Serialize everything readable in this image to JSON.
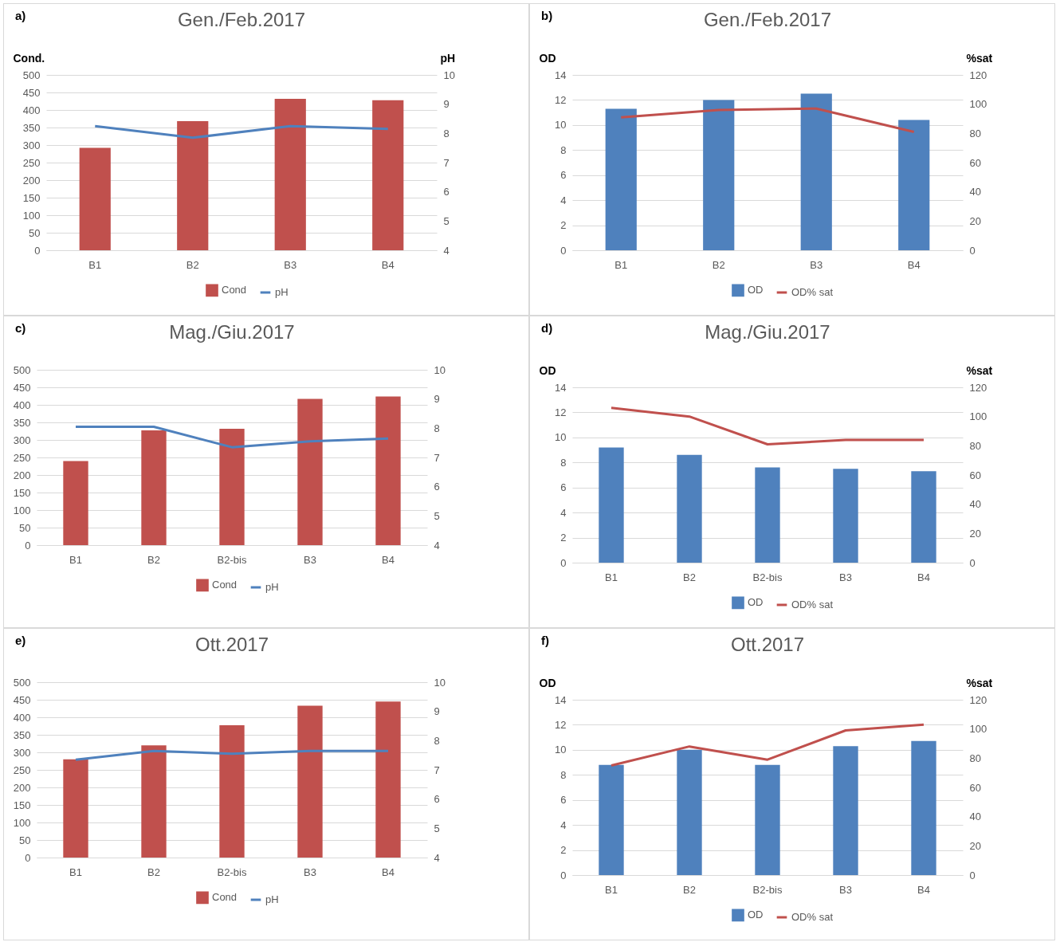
{
  "chart_data": [
    {
      "type": "bar",
      "title": "Gen./Feb.2017",
      "annotations": [
        "a)"
      ],
      "ylabel": "Cond.",
      "y2label": "pH",
      "categories": [
        "B1",
        "B2",
        "B3",
        "B4"
      ],
      "series": [
        {
          "name": "Cond",
          "color": "#c0504d",
          "values": [
            292,
            368,
            432,
            428
          ]
        },
        {
          "name": "pH",
          "type": "line",
          "axis": "y2",
          "color": "#4f81bd",
          "values": [
            8.25,
            7.85,
            8.25,
            8.15
          ]
        }
      ],
      "ylim": [
        0,
        500
      ],
      "yticks": [
        0,
        50,
        100,
        150,
        200,
        250,
        300,
        350,
        400,
        450,
        500
      ],
      "y2lim": [
        4,
        10
      ],
      "y2ticks": [
        4,
        5,
        6,
        7,
        8,
        9,
        10
      ],
      "grid": "y",
      "legend": "bottom"
    },
    {
      "type": "bar",
      "title": "Gen./Feb.2017",
      "annotations": [
        "b)"
      ],
      "ylabel": "OD",
      "y2label": "%sat",
      "categories": [
        "B1",
        "B2",
        "B3",
        "B4"
      ],
      "series": [
        {
          "name": "OD",
          "color": "#4f81bd",
          "values": [
            11.3,
            12.0,
            12.5,
            10.4
          ]
        },
        {
          "name": "OD% sat",
          "type": "line",
          "axis": "y2",
          "color": "#c0504d",
          "values": [
            91,
            96,
            97,
            81
          ]
        }
      ],
      "ylim": [
        0,
        14
      ],
      "yticks": [
        0,
        2,
        4,
        6,
        8,
        10,
        12,
        14
      ],
      "y2lim": [
        0,
        120
      ],
      "y2ticks": [
        0,
        20,
        40,
        60,
        80,
        100,
        120
      ],
      "grid": "y",
      "legend": "bottom"
    },
    {
      "type": "bar",
      "title": "Mag./Giu.2017",
      "annotations": [
        "c)"
      ],
      "categories": [
        "B1",
        "B2",
        "B2-bis",
        "B3",
        "B4"
      ],
      "series": [
        {
          "name": "Cond",
          "color": "#c0504d",
          "values": [
            240,
            327,
            332,
            417,
            424
          ]
        },
        {
          "name": "pH",
          "type": "line",
          "axis": "y2",
          "color": "#4f81bd",
          "values": [
            8.05,
            8.05,
            7.35,
            7.55,
            7.65
          ]
        }
      ],
      "ylim": [
        0,
        500
      ],
      "yticks": [
        0,
        50,
        100,
        150,
        200,
        250,
        300,
        350,
        400,
        450,
        500
      ],
      "y2lim": [
        4,
        10
      ],
      "y2ticks": [
        4,
        5,
        6,
        7,
        8,
        9,
        10
      ],
      "grid": "y",
      "legend": "bottom"
    },
    {
      "type": "bar",
      "title": "Mag./Giu.2017",
      "annotations": [
        "d)"
      ],
      "ylabel": "OD",
      "y2label": "%sat",
      "categories": [
        "B1",
        "B2",
        "B2-bis",
        "B3",
        "B4"
      ],
      "series": [
        {
          "name": "OD",
          "color": "#4f81bd",
          "values": [
            9.2,
            8.6,
            7.6,
            7.5,
            7.3
          ]
        },
        {
          "name": "OD% sat",
          "type": "line",
          "axis": "y2",
          "color": "#c0504d",
          "values": [
            106,
            100,
            81,
            84,
            84
          ]
        }
      ],
      "ylim": [
        0,
        14
      ],
      "yticks": [
        0,
        2,
        4,
        6,
        8,
        10,
        12,
        14
      ],
      "y2lim": [
        0,
        120
      ],
      "y2ticks": [
        0,
        20,
        40,
        60,
        80,
        100,
        120
      ],
      "grid": "y",
      "legend": "bottom"
    },
    {
      "type": "bar",
      "title": "Ott.2017",
      "annotations": [
        "e)"
      ],
      "categories": [
        "B1",
        "B2",
        "B2-bis",
        "B3",
        "B4"
      ],
      "series": [
        {
          "name": "Cond",
          "color": "#c0504d",
          "values": [
            280,
            320,
            377,
            433,
            445
          ]
        },
        {
          "name": "pH",
          "type": "line",
          "axis": "y2",
          "color": "#4f81bd",
          "values": [
            7.35,
            7.65,
            7.55,
            7.65,
            7.65
          ]
        }
      ],
      "ylim": [
        0,
        500
      ],
      "yticks": [
        0,
        50,
        100,
        150,
        200,
        250,
        300,
        350,
        400,
        450,
        500
      ],
      "y2lim": [
        4,
        10
      ],
      "y2ticks": [
        4,
        5,
        6,
        7,
        8,
        9,
        10
      ],
      "grid": "y",
      "legend": "bottom"
    },
    {
      "type": "bar",
      "title": "Ott.2017",
      "annotations": [
        "f)"
      ],
      "ylabel": "OD",
      "y2label": "%sat",
      "categories": [
        "B1",
        "B2",
        "B2-bis",
        "B3",
        "B4"
      ],
      "series": [
        {
          "name": "OD",
          "color": "#4f81bd",
          "values": [
            8.8,
            10.0,
            8.8,
            10.3,
            10.7
          ]
        },
        {
          "name": "OD% sat",
          "type": "line",
          "axis": "y2",
          "color": "#c0504d",
          "values": [
            75,
            88,
            79,
            99,
            103
          ]
        }
      ],
      "ylim": [
        0,
        14
      ],
      "yticks": [
        0,
        2,
        4,
        6,
        8,
        10,
        12,
        14
      ],
      "y2lim": [
        0,
        120
      ],
      "y2ticks": [
        0,
        20,
        40,
        60,
        80,
        100,
        120
      ],
      "grid": "y",
      "legend": "bottom"
    }
  ]
}
